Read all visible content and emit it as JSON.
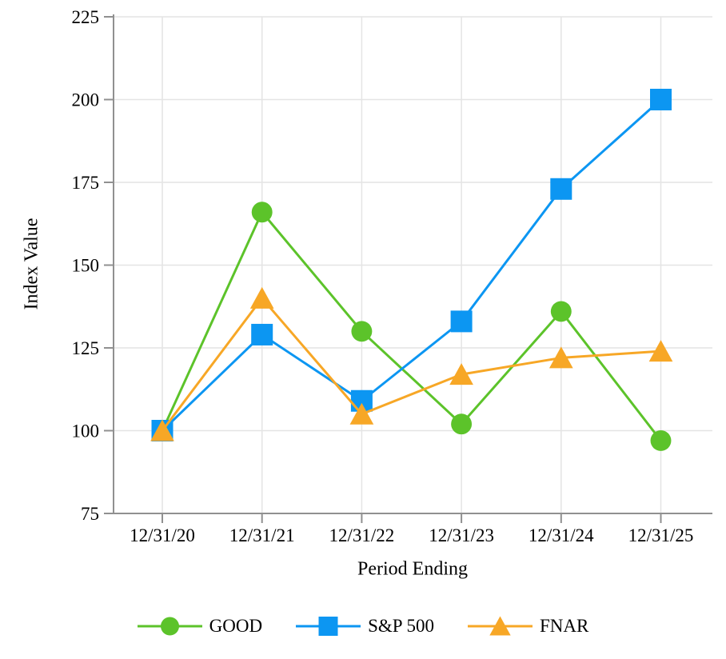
{
  "chart_data": {
    "type": "line",
    "title": "",
    "xlabel": "Period Ending",
    "ylabel": "Index Value",
    "categories": [
      "12/31/20",
      "12/31/21",
      "12/31/22",
      "12/31/23",
      "12/31/24",
      "12/31/25"
    ],
    "series": [
      {
        "name": "GOOD",
        "marker": "circle",
        "color": "#5CC32A",
        "values": [
          100,
          166,
          130,
          102,
          136,
          97
        ]
      },
      {
        "name": "S&P 500",
        "marker": "square",
        "color": "#0C96F2",
        "values": [
          100,
          129,
          109,
          133,
          173,
          200
        ]
      },
      {
        "name": "FNAR",
        "marker": "triangle",
        "color": "#F7A726",
        "values": [
          100,
          140,
          105,
          117,
          122,
          124
        ]
      }
    ],
    "ylim": [
      75,
      225
    ],
    "yticks": [
      75,
      100,
      125,
      150,
      175,
      200,
      225
    ],
    "grid": true,
    "legend_position": "bottom"
  },
  "colors": {
    "grid": "#E4E4E4",
    "axis": "#909090",
    "text": "#000000",
    "background": "#FFFFFF"
  }
}
